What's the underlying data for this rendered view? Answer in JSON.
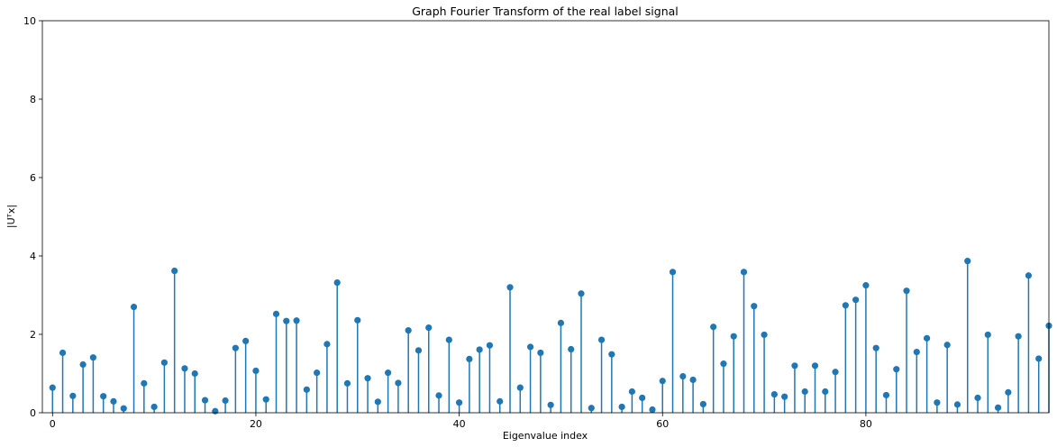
{
  "chart_data": {
    "type": "stem",
    "title": "Graph Fourier Transform of the real label signal",
    "xlabel": "Eigenvalue index",
    "ylabel": "|Uᵀx|",
    "xlim": [
      -1,
      98
    ],
    "ylim": [
      0,
      10
    ],
    "xticks": [
      0,
      20,
      40,
      60,
      80
    ],
    "yticks": [
      0,
      2,
      4,
      6,
      8,
      10
    ],
    "grid": false,
    "color": "#1f77b4",
    "x": [
      0,
      1,
      2,
      3,
      4,
      5,
      6,
      7,
      8,
      9,
      10,
      11,
      12,
      13,
      14,
      15,
      16,
      17,
      18,
      19,
      20,
      21,
      22,
      23,
      24,
      25,
      26,
      27,
      28,
      29,
      30,
      31,
      32,
      33,
      34,
      35,
      36,
      37,
      38,
      39,
      40,
      41,
      42,
      43,
      44,
      45,
      46,
      47,
      48,
      49,
      50,
      51,
      52,
      53,
      54,
      55,
      56,
      57,
      58,
      59,
      60,
      61,
      62,
      63,
      64,
      65,
      66,
      67,
      68,
      69,
      70,
      71,
      72,
      73,
      74,
      75,
      76,
      77,
      78,
      79,
      80,
      81,
      82,
      83,
      84,
      85,
      86,
      87,
      88,
      89,
      90,
      91,
      92,
      93,
      94,
      95,
      96,
      97,
      98
    ],
    "values": [
      0.64,
      1.53,
      0.43,
      1.23,
      1.41,
      0.42,
      0.29,
      0.11,
      2.7,
      0.75,
      0.15,
      1.28,
      3.62,
      1.13,
      1.0,
      0.32,
      0.04,
      0.31,
      1.65,
      1.83,
      1.07,
      0.34,
      2.52,
      2.34,
      2.35,
      0.59,
      1.02,
      1.75,
      3.32,
      0.75,
      2.36,
      0.88,
      0.28,
      1.02,
      0.76,
      2.1,
      1.59,
      2.17,
      0.44,
      1.86,
      0.26,
      1.37,
      1.61,
      1.72,
      0.29,
      3.2,
      0.64,
      1.68,
      1.53,
      0.2,
      2.29,
      1.62,
      3.04,
      0.12,
      1.86,
      1.49,
      0.15,
      0.54,
      0.38,
      0.08,
      0.81,
      3.59,
      0.93,
      0.84,
      0.22,
      2.19,
      1.25,
      1.95,
      3.59,
      2.72,
      1.99,
      0.47,
      0.41,
      1.2,
      0.54,
      1.2,
      0.54,
      1.04,
      2.74,
      2.88,
      3.25,
      1.65,
      0.45,
      1.11,
      3.11,
      1.55,
      1.9,
      0.26,
      1.73,
      0.21,
      3.87,
      0.38,
      1.99,
      0.13,
      0.52,
      1.95,
      3.5,
      1.38,
      2.22
    ]
  }
}
